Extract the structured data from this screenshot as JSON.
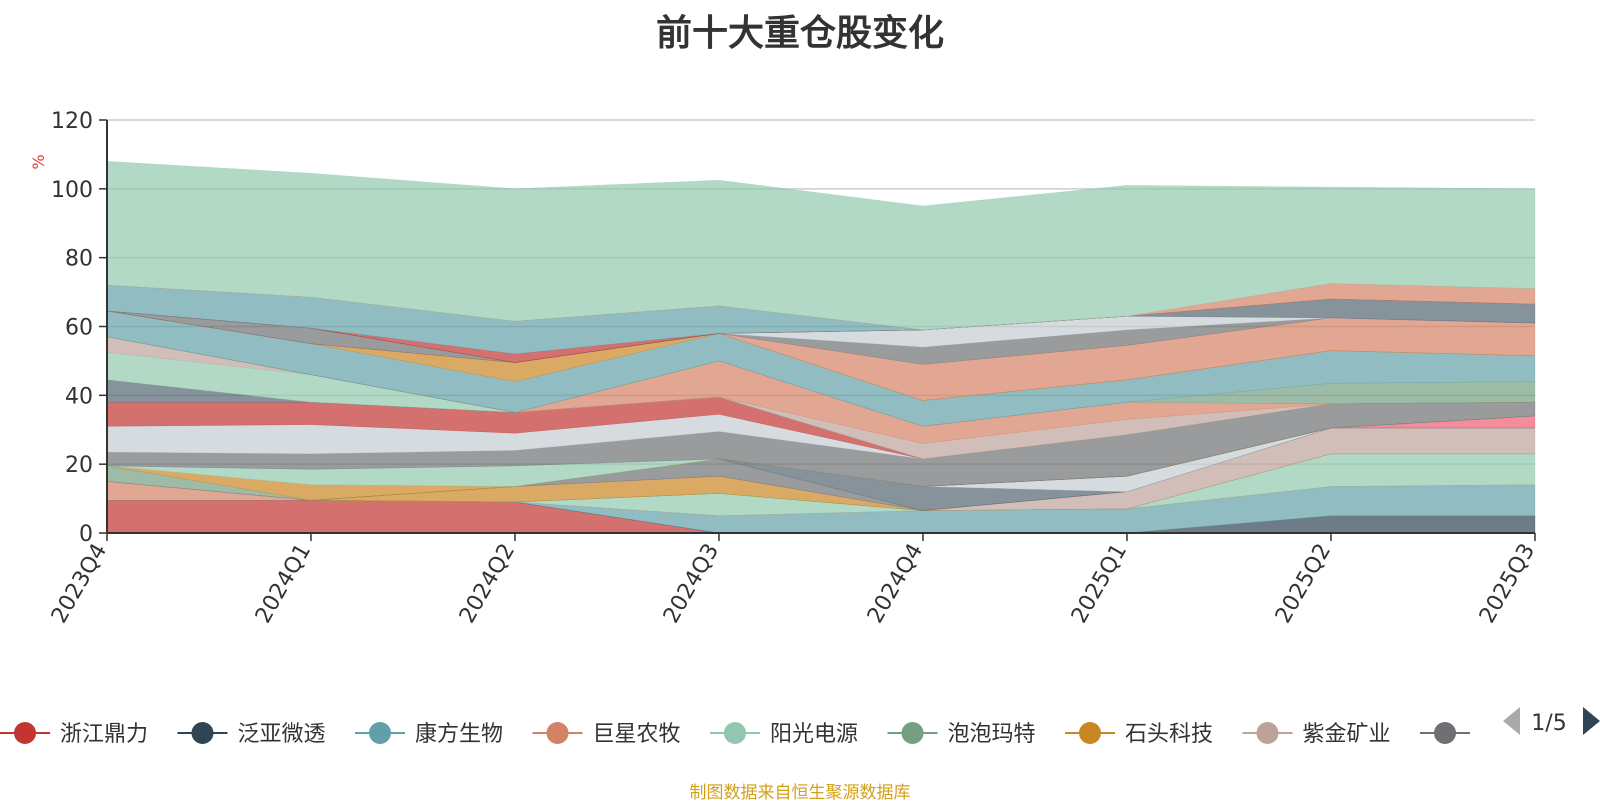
{
  "title": "前十大重仓股变化",
  "footer": "制图数据来自恒生聚源数据库",
  "legend_page": "1/5",
  "chart_data": {
    "type": "area",
    "stacked": true,
    "title": "前十大重仓股变化",
    "ylabel": "%",
    "ylim": [
      0,
      120
    ],
    "yticks": [
      0,
      20,
      40,
      60,
      80,
      100,
      120
    ],
    "grid": true,
    "legend_position": "bottom",
    "categories": [
      "2023Q4",
      "2024Q1",
      "2024Q2",
      "2024Q3",
      "2024Q4",
      "2025Q1",
      "2025Q2",
      "2025Q3"
    ],
    "series": [
      {
        "name": "浙江鼎力",
        "color": "#c23531",
        "values": [
          9.5,
          9.5,
          9,
          0,
          0,
          0,
          0,
          0
        ]
      },
      {
        "name": "泛亚微透",
        "color": "#2f4554",
        "values": [
          0,
          0,
          0,
          0,
          0,
          0,
          5,
          5
        ]
      },
      {
        "name": "康方生物",
        "color": "#61a0a8",
        "values": [
          0,
          0,
          0,
          5,
          6.5,
          7,
          8.5,
          9
        ]
      },
      {
        "name": "巨星农牧",
        "color": "#d48265",
        "values": [
          5.5,
          0,
          0,
          0,
          0,
          0,
          0,
          0
        ]
      },
      {
        "name": "阳光电源",
        "color": "#91c7ae",
        "values": [
          0,
          0,
          0,
          6.5,
          0,
          0,
          9.5,
          9
        ]
      },
      {
        "name": "泡泡玛特",
        "color": "#749f83",
        "values": [
          0,
          0,
          0,
          0,
          0,
          0,
          0,
          0
        ]
      },
      {
        "name": "石头科技",
        "color": "#ca8622",
        "values": [
          0,
          0,
          4.5,
          5,
          0,
          0,
          0,
          0
        ]
      },
      {
        "name": "紫金矿业",
        "color": "#bda29a",
        "values": [
          0,
          0,
          0,
          0,
          0,
          5,
          7.5,
          7.5
        ]
      },
      {
        "name": "",
        "color": "#6e7074",
        "values": [
          0,
          0,
          0,
          5,
          0,
          0,
          0,
          0
        ]
      },
      {
        "name": "",
        "color": "#546570",
        "values": [
          0,
          0,
          0,
          0,
          7,
          0,
          0,
          0
        ]
      },
      {
        "name": "",
        "color": "#c4ccd3",
        "values": [
          0,
          0,
          0,
          0,
          0,
          4.5,
          0,
          0
        ]
      },
      {
        "name": "",
        "color": "#f05b72",
        "values": [
          0,
          0,
          0,
          0,
          0,
          0,
          0,
          3.5
        ]
      },
      {
        "name": "",
        "color": "#749f83",
        "values": [
          4.5,
          0,
          0,
          0,
          0,
          0,
          0,
          0
        ]
      },
      {
        "name": "",
        "color": "#ca8622",
        "values": [
          0,
          4.5,
          0,
          0,
          0,
          0,
          0,
          0
        ]
      },
      {
        "name": "",
        "color": "#91c7ae",
        "values": [
          0,
          4.5,
          6,
          0,
          0,
          0,
          0,
          0
        ]
      },
      {
        "name": "",
        "color": "#6e7074",
        "values": [
          4,
          4.5,
          4.5,
          8,
          8,
          12,
          7,
          4
        ]
      },
      {
        "name": "",
        "color": "#c4ccd3",
        "values": [
          7.5,
          8.5,
          5,
          5,
          0,
          0,
          0,
          0
        ]
      },
      {
        "name": "",
        "color": "#c23531",
        "values": [
          7,
          6.5,
          6,
          5,
          0,
          0,
          0,
          0
        ]
      },
      {
        "name": "",
        "color": "#546570",
        "values": [
          6.5,
          0,
          0,
          0,
          0,
          0,
          0,
          0
        ]
      },
      {
        "name": "",
        "color": "#91c7ae",
        "values": [
          8,
          8,
          0,
          0,
          0,
          0,
          0,
          0
        ]
      },
      {
        "name": "",
        "color": "#bda29a",
        "values": [
          4.5,
          0,
          0,
          0,
          4.5,
          4.5,
          0,
          0
        ]
      },
      {
        "name": "",
        "color": "#d48265",
        "values": [
          0,
          0,
          0,
          10.5,
          5,
          5,
          0,
          0
        ]
      },
      {
        "name": "",
        "color": "#749f83",
        "values": [
          0,
          0,
          0,
          0,
          0,
          0,
          6,
          6
        ]
      },
      {
        "name": "",
        "color": "#61a0a8",
        "values": [
          7.5,
          9,
          9,
          8,
          7.5,
          6.5,
          9.5,
          7.5
        ]
      },
      {
        "name": "",
        "color": "#ca8622",
        "values": [
          0,
          0,
          5.5,
          0,
          0,
          0,
          0,
          0
        ]
      },
      {
        "name": "",
        "color": "#d48265",
        "values": [
          0,
          0,
          0,
          0,
          10.5,
          10,
          9.5,
          9.5
        ]
      },
      {
        "name": "",
        "color": "#6e7074",
        "values": [
          0,
          4.5,
          0,
          0,
          5,
          4.5,
          0,
          0
        ]
      },
      {
        "name": "",
        "color": "#c4ccd3",
        "values": [
          0,
          0,
          0,
          0,
          5,
          4,
          0,
          0
        ]
      },
      {
        "name": "",
        "color": "#546570",
        "values": [
          0,
          0,
          0,
          0,
          0,
          0,
          5.5,
          5.5
        ]
      },
      {
        "name": "",
        "color": "#c23531",
        "values": [
          0,
          0,
          2.5,
          0,
          0,
          0,
          0,
          0
        ]
      },
      {
        "name": "",
        "color": "#61a0a8",
        "values": [
          7.5,
          9,
          9.5,
          8,
          0,
          0,
          0,
          0
        ]
      },
      {
        "name": "",
        "color": "#d48265",
        "values": [
          0,
          0,
          0,
          0,
          0,
          0,
          4.5,
          4.5
        ]
      },
      {
        "name": "",
        "color": "#91c7ae",
        "values": [
          36,
          36,
          38.5,
          36.5,
          36,
          38,
          28,
          29
        ]
      }
    ]
  }
}
